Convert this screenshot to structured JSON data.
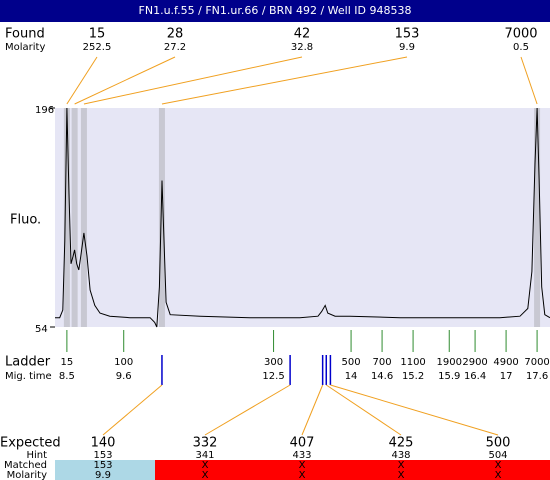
{
  "header": {
    "title": "FN1.u.f.55 / FN1.ur.66 / BRN 492 / Well ID 948538"
  },
  "found": {
    "label": "Found",
    "sub_label": "Molarity",
    "sizes": [
      15,
      28,
      42,
      153,
      7000
    ],
    "molarity": [
      252.5,
      27.2,
      32.8,
      9.9,
      0.5
    ],
    "times": [
      8.5,
      8.65,
      8.83,
      10.34,
      17.6
    ]
  },
  "chart_data": {
    "type": "line",
    "y_label": "Fluo.",
    "ylim": [
      54,
      196
    ],
    "yticks": [
      54,
      196
    ],
    "xlim": [
      8.27,
      17.85
    ],
    "color": "#000000",
    "x": [
      8.27,
      8.36,
      8.42,
      8.46,
      8.5,
      8.54,
      8.58,
      8.62,
      8.65,
      8.69,
      8.73,
      8.77,
      8.83,
      8.89,
      8.95,
      9.04,
      9.14,
      9.33,
      9.72,
      10.11,
      10.2,
      10.24,
      10.29,
      10.34,
      10.38,
      10.42,
      10.5,
      11.08,
      12.04,
      13.01,
      13.36,
      13.43,
      13.5,
      13.55,
      13.69,
      13.98,
      14.95,
      15.92,
      16.88,
      17.27,
      17.42,
      17.5,
      17.56,
      17.6,
      17.64,
      17.69,
      17.75,
      17.85
    ],
    "values": [
      60,
      60,
      65,
      110,
      196,
      140,
      95,
      100,
      104,
      95,
      91,
      100,
      115,
      100,
      78,
      68,
      63,
      61,
      60,
      60,
      57,
      54,
      80,
      149,
      110,
      70,
      62,
      61,
      60,
      60,
      61,
      64,
      68,
      63,
      61,
      61,
      60,
      60,
      60,
      61,
      66,
      90,
      160,
      196,
      150,
      80,
      62,
      60
    ]
  },
  "ladder": {
    "label": "Ladder",
    "sub_label": "Mig. time",
    "sizes": [
      15,
      100,
      300,
      500,
      700,
      1100,
      1900,
      2900,
      4900,
      7000
    ],
    "times": [
      8.5,
      9.6,
      12.5,
      14,
      14.6,
      15.2,
      15.9,
      16.4,
      17,
      17.6
    ]
  },
  "expected": {
    "label": "Expected",
    "hint_label": "Hint",
    "matched_label": "Matched",
    "molarity_label": "Molarity",
    "sizes": [
      140,
      332,
      407,
      425,
      500
    ],
    "hints": [
      153,
      341,
      433,
      438,
      504
    ],
    "matched": [
      153,
      "X",
      "X",
      "X",
      "X"
    ],
    "molarity": [
      9.9,
      "X",
      "X",
      "X",
      "X"
    ],
    "times": [
      10.34,
      12.82,
      13.45,
      13.52,
      13.6
    ]
  }
}
